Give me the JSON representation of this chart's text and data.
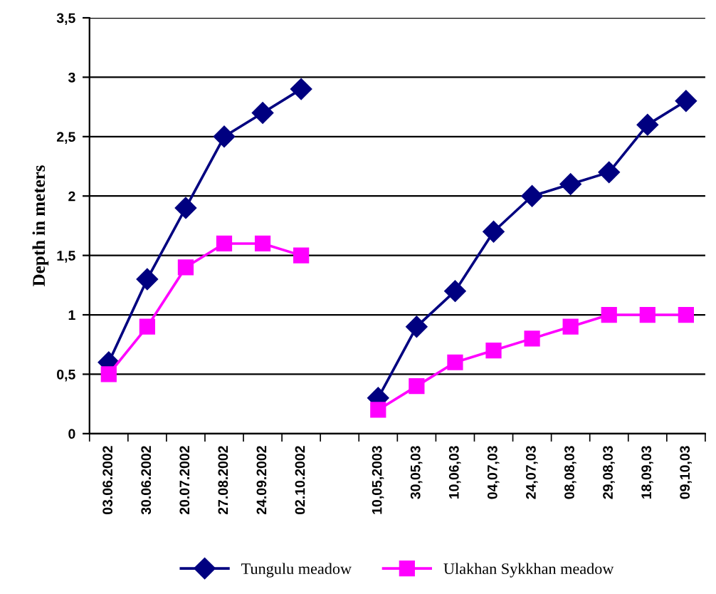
{
  "chart_data": {
    "type": "line",
    "ylabel": "Depth in meters",
    "categories": [
      "03.06.2002",
      "30.06.2002",
      "20.07.2002",
      "27.08.2002",
      "24.09.2002",
      "02.10.2002",
      null,
      "10,05,2003",
      "30,05,03",
      "10,06,03",
      "04,07,03",
      "24,07,03",
      "08,08,03",
      "29,08,03",
      "18,09,03",
      "09,10,03"
    ],
    "series": [
      {
        "name": "Tungulu meadow",
        "color": "#000080",
        "marker": "diamond",
        "values": [
          0.6,
          1.3,
          1.9,
          2.5,
          2.7,
          2.9,
          null,
          0.3,
          0.9,
          1.2,
          1.7,
          2.0,
          2.1,
          2.2,
          2.6,
          2.8
        ]
      },
      {
        "name": "Ulakhan Sykkhan meadow",
        "color": "#ff00ff",
        "marker": "square",
        "values": [
          0.5,
          0.9,
          1.4,
          1.6,
          1.6,
          1.5,
          null,
          0.2,
          0.4,
          0.6,
          0.7,
          0.8,
          0.9,
          1.0,
          1.0,
          1.0
        ]
      }
    ],
    "ylim": [
      0,
      3.5
    ],
    "yticks": [
      0,
      {
        "value": 0.5,
        "label": "0,5"
      },
      1,
      {
        "value": 1.5,
        "label": "1,5"
      },
      2,
      {
        "value": 2.5,
        "label": "2,5"
      },
      3,
      {
        "value": 3.5,
        "label": "3,5"
      }
    ],
    "grid": "y",
    "legend": "bottom",
    "line_style": "solid"
  }
}
